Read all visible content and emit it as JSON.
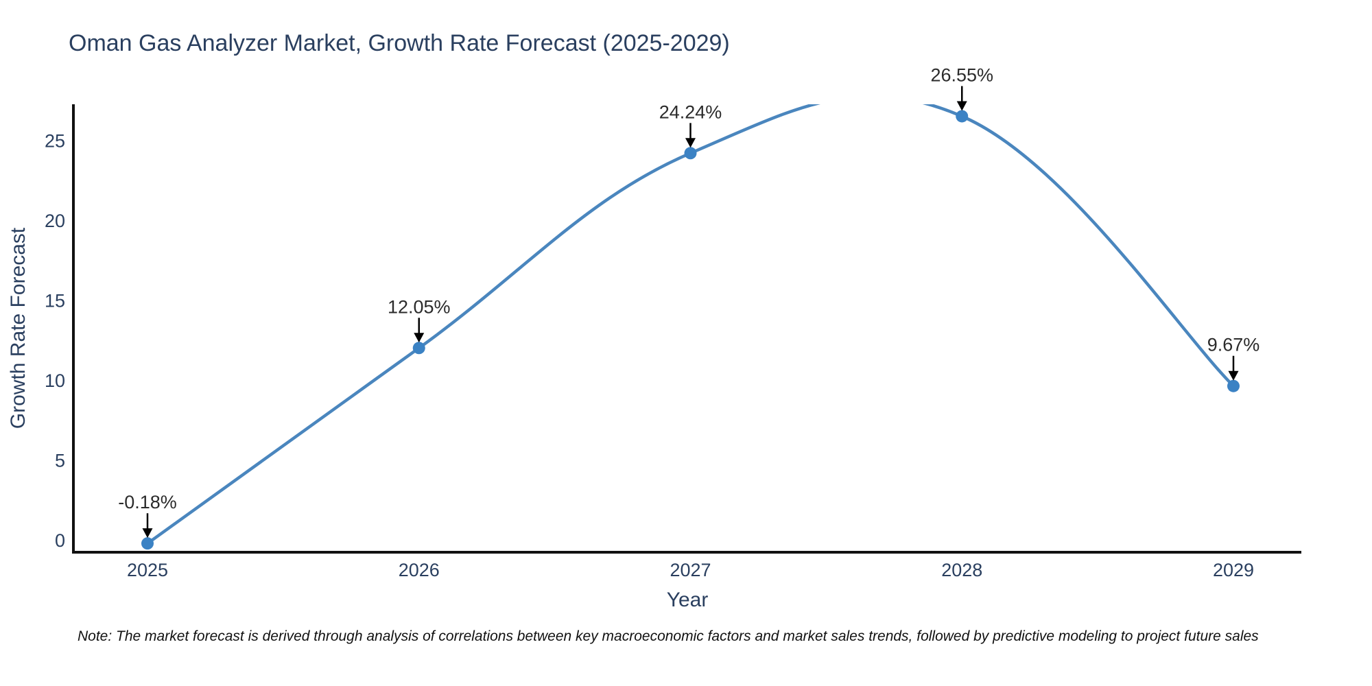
{
  "title": "Oman Gas Analyzer Market, Growth Rate Forecast (2025-2029)",
  "note": "Note: The market forecast is derived through analysis of correlations between key macroeconomic factors and market sales trends, followed by predictive modeling to project future sales",
  "chart_data": {
    "type": "line",
    "line_shape": "spline",
    "title": "Oman Gas Analyzer Market, Growth Rate Forecast (2025-2029)",
    "categories": [
      "2025",
      "2026",
      "2027",
      "2028",
      "2029"
    ],
    "values": [
      -0.18,
      12.05,
      24.24,
      26.55,
      9.67
    ],
    "point_labels": [
      "-0.18%",
      "12.05%",
      "24.24%",
      "26.55%",
      "9.67%"
    ],
    "xlabel": "Year",
    "ylabel": "Growth Rate Forecast",
    "y_ticks": [
      0,
      5,
      10,
      15,
      20,
      25
    ],
    "ylim": [
      -0.73,
      27.3
    ],
    "grid": false,
    "legend": "none",
    "markers": true,
    "annotations_have_arrows": true,
    "colors": {
      "line": "#4a86be",
      "marker": "#3b82c4",
      "axis_line": "#111111",
      "axis_text": "#2a3f5f",
      "annotation_text": "#2b2b2b",
      "arrow": "#000000",
      "background": "#ffffff"
    }
  }
}
